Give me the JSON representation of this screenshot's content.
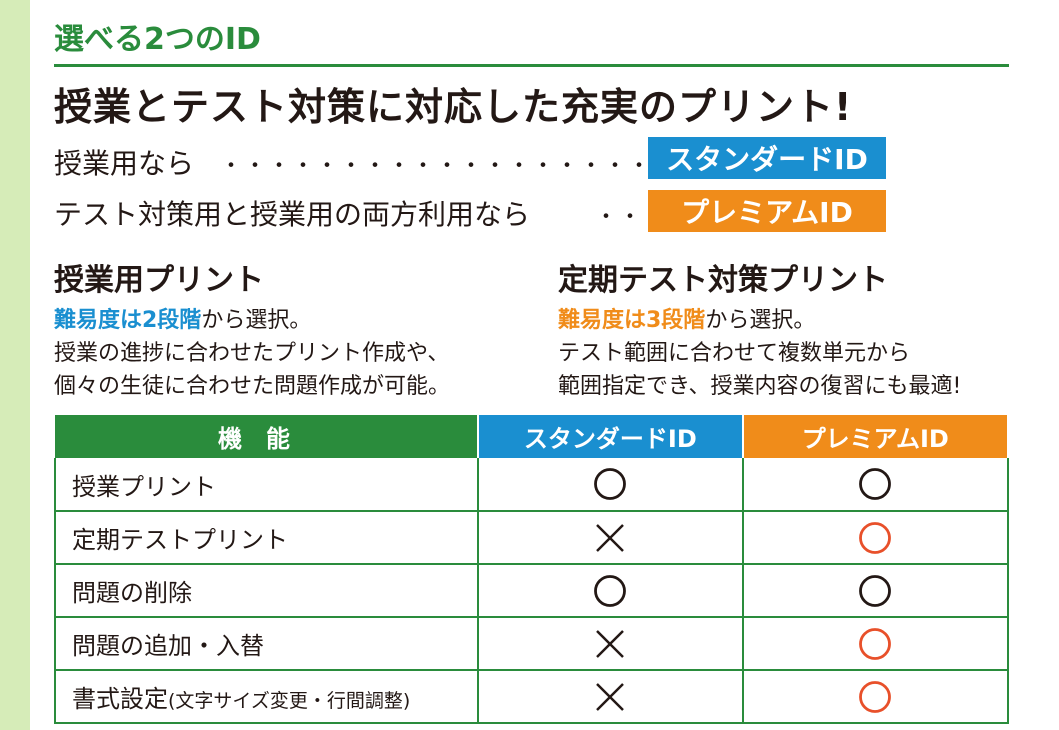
{
  "section_label": "選べる2つのID",
  "headline": "授業とテスト対策に対応した充実のプリント!",
  "rows": [
    {
      "text": "授業用なら",
      "dots": "・・・・・・・・・・・・・・・・・・・・・・",
      "badge": "スタンダードID"
    },
    {
      "text": "テスト対策用と授業用の両方利用なら",
      "dots": "・・・・",
      "badge": "プレミアムID"
    }
  ],
  "left": {
    "title": "授業用プリント",
    "highlight": "難易度は2段階",
    "line1_rest": "から選択。",
    "line2": "授業の進捗に合わせたプリント作成や、",
    "line3": "個々の生徒に合わせた問題作成が可能。"
  },
  "right": {
    "title": "定期テスト対策プリント",
    "highlight": "難易度は3段階",
    "line1_rest": "から選択。",
    "line2": "テスト範囲に合わせて複数単元から",
    "line3": "範囲指定でき、授業内容の復習にも最適!"
  },
  "table": {
    "headers": [
      "機能",
      "スタンダードID",
      "プレミアムID"
    ],
    "rows": [
      {
        "name": "授業プリント",
        "note": "",
        "standard": "circle",
        "premium": "circle"
      },
      {
        "name": "定期テストプリント",
        "note": "",
        "standard": "cross",
        "premium": "circle-red"
      },
      {
        "name": "問題の削除",
        "note": "",
        "standard": "circle",
        "premium": "circle"
      },
      {
        "name": "問題の追加・入替",
        "note": "",
        "standard": "cross",
        "premium": "circle-red"
      },
      {
        "name": "書式設定",
        "note": "(文字サイズ変更・行間調整)",
        "standard": "cross",
        "premium": "circle-red"
      }
    ]
  },
  "colors": {
    "green": "#2a8c3c",
    "blue": "#1a8fd0",
    "orange": "#f08c1a",
    "red_mark": "#e8502a",
    "black_mark": "#231815"
  }
}
